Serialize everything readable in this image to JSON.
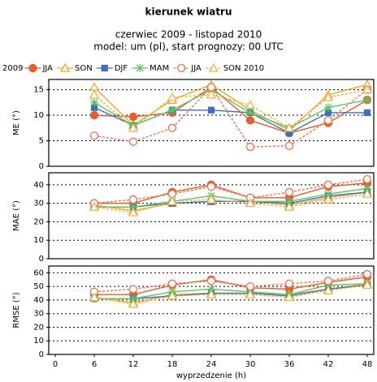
{
  "title": "kierunek wiatru",
  "subtitle": [
    "czerwiec 2009 - listopad 2010",
    "model: um (pl), start prognozy: 00 UTC"
  ],
  "legend_title": "2009",
  "xlabel": "wyprzedzenie (h)",
  "chart_data": [
    {
      "type": "line",
      "ylabel": "ME (°)",
      "x": [
        6,
        12,
        18,
        24,
        30,
        36,
        42,
        48
      ],
      "xlim": [
        -1,
        49
      ],
      "ylim": [
        0,
        17
      ],
      "yticks": [
        0,
        5,
        10,
        15
      ],
      "grid": true,
      "series": [
        {
          "name": "JJA",
          "color": "#f05a28",
          "marker": "circle",
          "filled": true,
          "dashed": false,
          "values": [
            10,
            9.7,
            10.5,
            15.5,
            9,
            6.5,
            8.5,
            13
          ]
        },
        {
          "name": "SON",
          "color": "#f5a623",
          "marker": "triangle",
          "filled": false,
          "dashed": false,
          "values": [
            15.5,
            8,
            13,
            16,
            11,
            7,
            14,
            16
          ]
        },
        {
          "name": "DJF",
          "color": "#3a6fc4",
          "marker": "square",
          "filled": true,
          "dashed": false,
          "values": [
            11.5,
            8,
            11,
            11,
            10.5,
            6.5,
            10.5,
            10.5
          ]
        },
        {
          "name": "MAM",
          "color": "#5cc85c",
          "marker": "star",
          "filled": false,
          "dashed": false,
          "values": [
            12.5,
            8,
            11,
            15,
            10.5,
            7.5,
            11.5,
            13
          ]
        },
        {
          "name": "JJA",
          "color": "#f07050",
          "marker": "circle",
          "filled": false,
          "dashed": true,
          "values": [
            6,
            4.8,
            7.5,
            15.5,
            3.8,
            4,
            9,
            15
          ]
        },
        {
          "name": "SON 2010",
          "color": "#f5b040",
          "marker": "triangle",
          "filled": false,
          "dashed": true,
          "values": [
            14,
            7.5,
            13.5,
            14,
            12,
            7.5,
            13.5,
            15
          ]
        }
      ]
    },
    {
      "type": "line",
      "ylabel": "MAE (°)",
      "x": [
        6,
        12,
        18,
        24,
        30,
        36,
        42,
        48
      ],
      "xlim": [
        -1,
        49
      ],
      "ylim": [
        0,
        46.5
      ],
      "yticks": [
        0,
        10,
        20,
        30,
        40
      ],
      "grid": true,
      "series": [
        {
          "values": [
            30,
            30,
            36,
            40,
            33,
            33,
            39,
            41
          ]
        },
        {
          "values": [
            29,
            26,
            30,
            31,
            31,
            29,
            33,
            36
          ]
        },
        {
          "values": [
            28,
            28,
            30,
            31,
            31,
            30,
            34,
            36
          ]
        },
        {
          "values": [
            28,
            28,
            31,
            34,
            31,
            31,
            35,
            38
          ]
        },
        {
          "values": [
            30,
            32,
            35,
            39,
            33,
            36,
            40,
            43
          ]
        },
        {
          "values": [
            28,
            25,
            31,
            32,
            30,
            28,
            32,
            35
          ]
        }
      ]
    },
    {
      "type": "line",
      "ylabel": "RMSE (°)",
      "x": [
        6,
        12,
        18,
        24,
        30,
        36,
        42,
        48
      ],
      "xlim": [
        -1,
        49
      ],
      "xticks": [
        0,
        6,
        12,
        18,
        24,
        30,
        36,
        42,
        48
      ],
      "ylim": [
        0,
        65
      ],
      "yticks": [
        0,
        10,
        20,
        30,
        40,
        50,
        60
      ],
      "grid": true,
      "series": [
        {
          "values": [
            44,
            44,
            51,
            55,
            49,
            48,
            53,
            57
          ]
        },
        {
          "values": [
            42,
            38,
            44,
            45,
            45,
            44,
            48,
            52
          ]
        },
        {
          "values": [
            41,
            41,
            43,
            45,
            45,
            43,
            48,
            51
          ]
        },
        {
          "values": [
            41,
            41,
            46,
            48,
            46,
            44,
            51,
            52
          ]
        },
        {
          "values": [
            46,
            48,
            52,
            54,
            50,
            52,
            54,
            59
          ]
        },
        {
          "values": [
            42,
            37,
            43,
            44,
            44,
            42,
            47,
            51
          ]
        }
      ]
    }
  ]
}
